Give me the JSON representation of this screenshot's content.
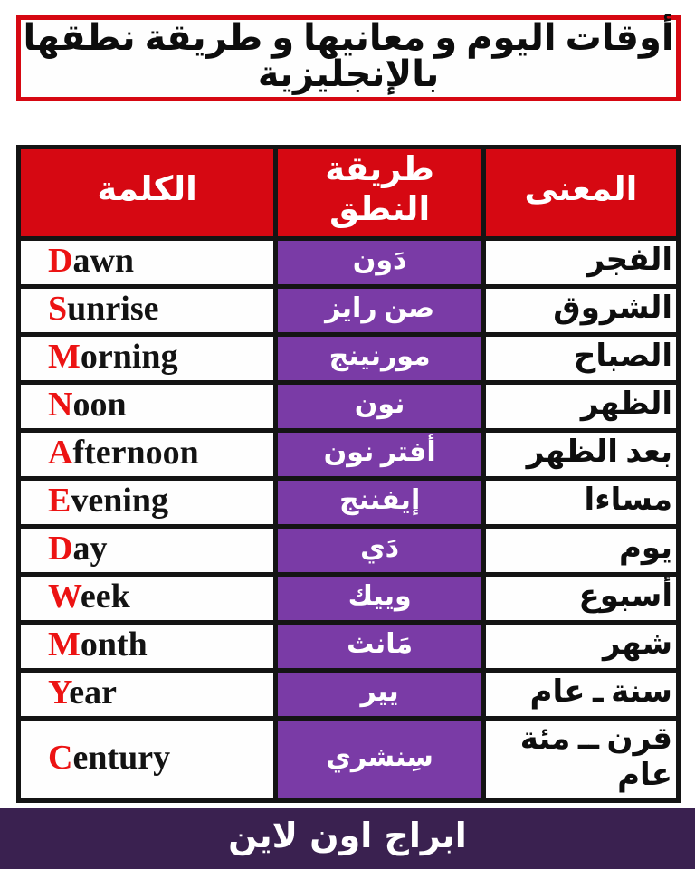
{
  "title": "أوقات اليوم و معانيها و طريقة نطقها بالإنجليزية",
  "table": {
    "headers": {
      "word": "الكلمة",
      "pronunciation": "طريقة النطق",
      "meaning": "المعنى"
    },
    "rows": [
      {
        "word": "Dawn",
        "pronunciation": "دَون",
        "meaning": "الفجر"
      },
      {
        "word": "Sunrise",
        "pronunciation": "صن رايز",
        "meaning": "الشروق"
      },
      {
        "word": "Morning",
        "pronunciation": "مورنينج",
        "meaning": "الصباح"
      },
      {
        "word": "Noon",
        "pronunciation": "نون",
        "meaning": "الظهر"
      },
      {
        "word": "Afternoon",
        "pronunciation": "أفتر نون",
        "meaning": "بعد الظهر"
      },
      {
        "word": "Evening",
        "pronunciation": "إيفننج",
        "meaning": "مساءا"
      },
      {
        "word": "Day",
        "pronunciation": "دَي",
        "meaning": "يوم"
      },
      {
        "word": "Week",
        "pronunciation": "وييك",
        "meaning": "أسبوع"
      },
      {
        "word": "Month",
        "pronunciation": "مَانث",
        "meaning": "شهر"
      },
      {
        "word": "Year",
        "pronunciation": "يير",
        "meaning": "سنة ـ عام"
      },
      {
        "word": "Century",
        "pronunciation": "سِنشري",
        "meaning": "قرن ــ مئة عام"
      }
    ]
  },
  "footer": {
    "brand": "ابراج اون لاين"
  },
  "colors": {
    "header_red": "#d60812",
    "accent_red": "#ec1313",
    "pron_purple": "#7a3ba6",
    "footer_purple": "#3a2150"
  }
}
